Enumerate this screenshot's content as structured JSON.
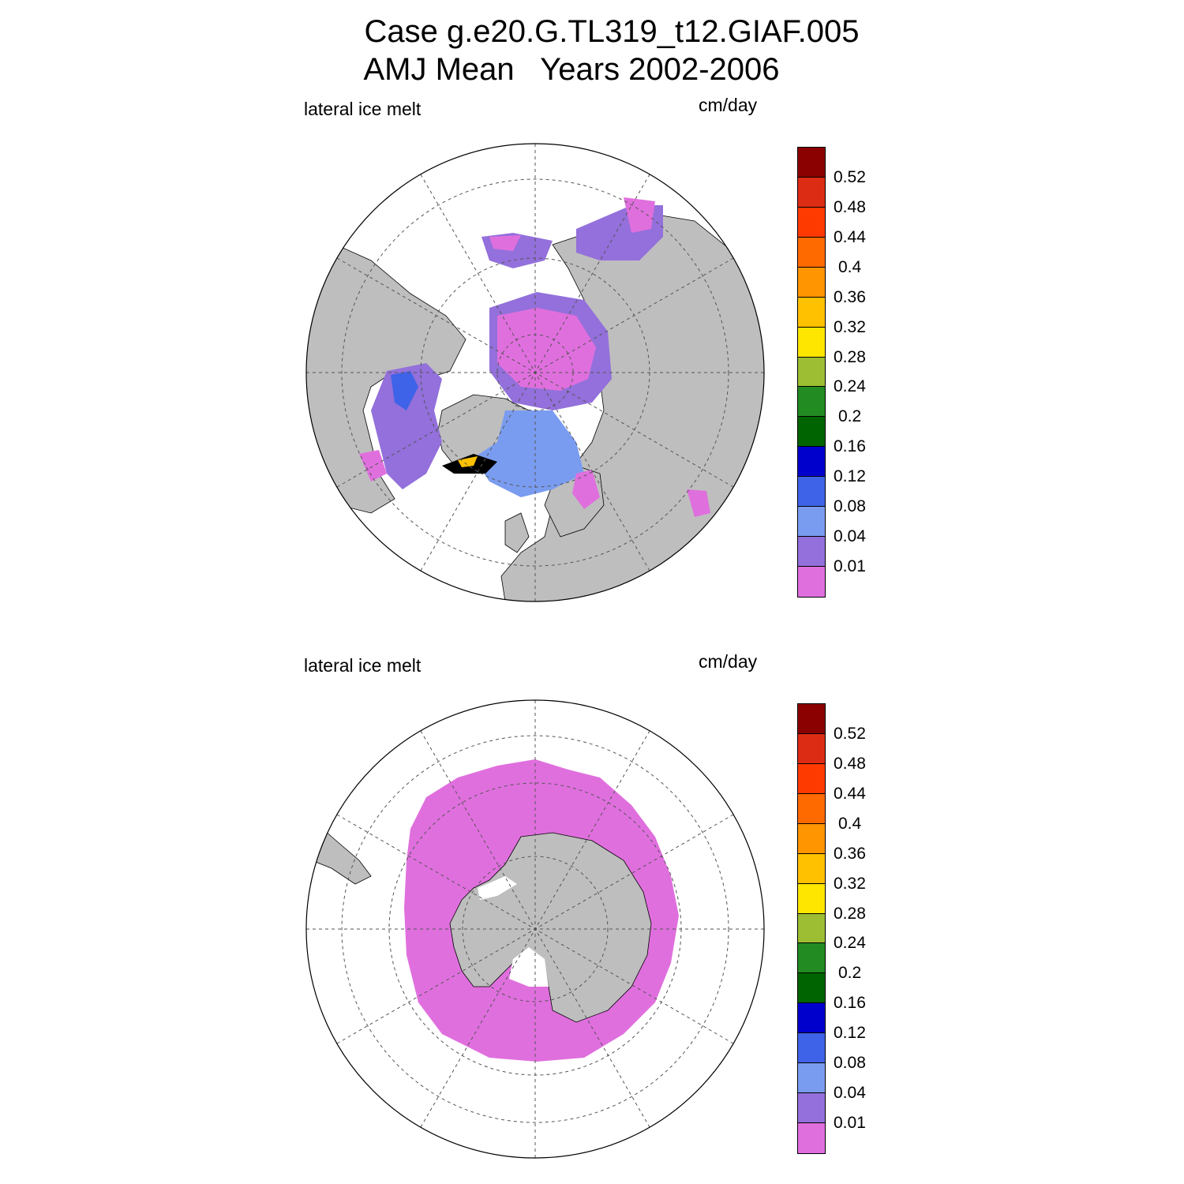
{
  "figure": {
    "title_line1": "Case g.e20.G.TL319_t12.GIAF.005",
    "title_line2": "AMJ Mean   Years 2002-2006"
  },
  "panels": [
    {
      "id": "north",
      "hemisphere": "Northern",
      "variable_label": "lateral ice melt",
      "units_label": "cm/day"
    },
    {
      "id": "south",
      "hemisphere": "Southern",
      "variable_label": "lateral ice melt",
      "units_label": "cm/day"
    }
  ],
  "colorbar": {
    "tick_labels": [
      "0.52",
      "0.48",
      "0.44",
      "0.4",
      "0.36",
      "0.32",
      "0.28",
      "0.24",
      "0.2",
      "0.16",
      "0.12",
      "0.08",
      "0.04",
      "0.01"
    ],
    "colors_top_to_bottom": [
      "#8b0000",
      "#dd2c14",
      "#ff3a00",
      "#ff6a00",
      "#ff9500",
      "#ffc100",
      "#ffe600",
      "#9dbe32",
      "#228b22",
      "#006400",
      "#0000cd",
      "#3f63e8",
      "#7a9cf0",
      "#9370db",
      "#e06fde"
    ]
  },
  "chart_data": [
    {
      "type": "heatmap",
      "projection": "polar stereographic",
      "hemisphere": "Northern",
      "title": "lateral ice melt",
      "units": "cm/day",
      "levels": [
        0.01,
        0.04,
        0.08,
        0.12,
        0.16,
        0.2,
        0.24,
        0.28,
        0.32,
        0.36,
        0.4,
        0.44,
        0.48,
        0.52
      ],
      "land_color": "#bebebe",
      "grid": true
    },
    {
      "type": "heatmap",
      "projection": "polar stereographic",
      "hemisphere": "Southern",
      "title": "lateral ice melt",
      "units": "cm/day",
      "levels": [
        0.01,
        0.04,
        0.08,
        0.12,
        0.16,
        0.2,
        0.24,
        0.28,
        0.32,
        0.36,
        0.4,
        0.44,
        0.48,
        0.52
      ],
      "land_color": "#bebebe",
      "grid": true
    }
  ]
}
